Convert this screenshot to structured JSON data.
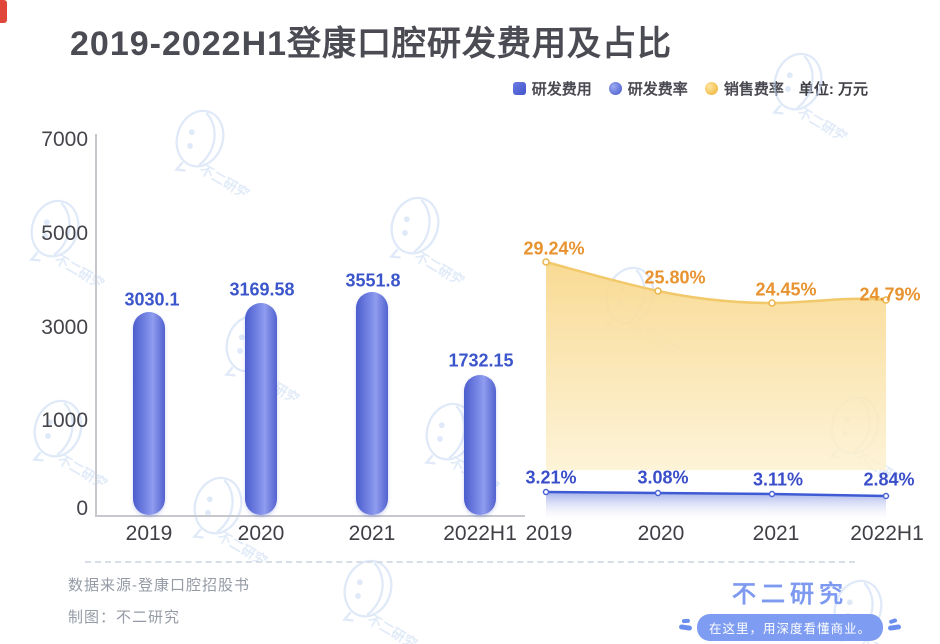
{
  "title": "2019-2022H1登康口腔研发费用及占比",
  "legend": {
    "items": [
      {
        "label": "研发费用",
        "marker": "square",
        "color": "#4d5fd0"
      },
      {
        "label": "研发费率",
        "marker": "circle",
        "color": "#4d5fd0"
      },
      {
        "label": "销售费率",
        "marker": "circle",
        "color": "#f1b33c"
      }
    ],
    "unit_label": "单位: 万元"
  },
  "chart_data": {
    "type": "combo",
    "categories": [
      "2019",
      "2020",
      "2021",
      "2022H1"
    ],
    "series": [
      {
        "name": "研发费用",
        "type": "bar",
        "unit": "万元",
        "values": [
          3030.1,
          3169.58,
          3551.8,
          1732.15
        ],
        "color": "#4d5fd0"
      },
      {
        "name": "研发费率",
        "type": "line",
        "unit": "%",
        "values": [
          3.21,
          3.08,
          3.11,
          2.84
        ],
        "color": "#3f5bd4"
      },
      {
        "name": "销售费率",
        "type": "area",
        "unit": "%",
        "values": [
          29.24,
          25.8,
          24.45,
          24.79
        ],
        "color": "#f2c96a"
      }
    ],
    "y_axis_ticks": [
      7000,
      5000,
      3000,
      1000,
      0
    ],
    "grid": false,
    "legend_position": "top-right"
  },
  "footer": {
    "source": "数据来源-登康口腔招股书",
    "credit": "制图：不二研究"
  },
  "brand": {
    "name": "不二研究",
    "tagline": "在这里，用深度看懂商业。",
    "watermark_icon": "lemon-doodle-icon",
    "color": "#7d9af0"
  },
  "colors": {
    "title": "#4b4b53",
    "accent_mark": "#e14b3d",
    "bar_value_label": "#3b55cb",
    "sales_rate_label": "#e8932f",
    "rnd_rate_label": "#3a4ec9",
    "axis_line": "#c6c8ce"
  }
}
